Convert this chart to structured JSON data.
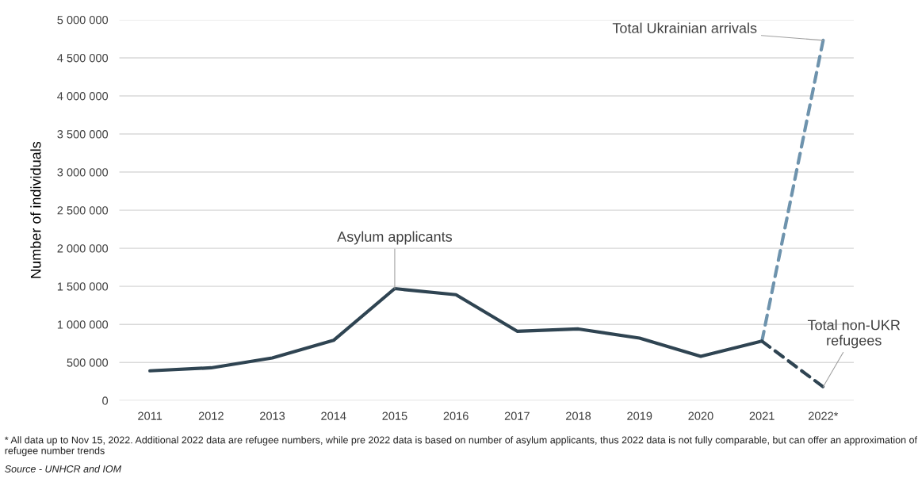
{
  "chart_data": {
    "type": "line",
    "ylabel": "Number of individuals",
    "categories": [
      "2011",
      "2012",
      "2013",
      "2014",
      "2015",
      "2016",
      "2017",
      "2018",
      "2019",
      "2020",
      "2021",
      "2022*"
    ],
    "series": [
      {
        "name": "Asylum applicants",
        "color": "#2f4452",
        "line_style": "solid",
        "values": [
          390000,
          430000,
          560000,
          790000,
          1470000,
          1390000,
          910000,
          940000,
          820000,
          580000,
          780000,
          null
        ]
      },
      {
        "name": "Total Ukrainian arrivals",
        "color": "#6e93ad",
        "line_style": "dashed",
        "values": [
          null,
          null,
          null,
          null,
          null,
          null,
          null,
          null,
          null,
          null,
          780000,
          4730000
        ]
      },
      {
        "name": "Total non-UKR refugees",
        "color": "#2f4452",
        "line_style": "dashed",
        "values": [
          null,
          null,
          null,
          null,
          null,
          null,
          null,
          null,
          null,
          null,
          780000,
          180000
        ]
      }
    ],
    "ylim": [
      0,
      5000000
    ],
    "yticks": [
      {
        "value": 0,
        "label": "0"
      },
      {
        "value": 500000,
        "label": "500 000"
      },
      {
        "value": 1000000,
        "label": "1 000 000"
      },
      {
        "value": 1500000,
        "label": "1 500 000"
      },
      {
        "value": 2000000,
        "label": "2 000 000"
      },
      {
        "value": 2500000,
        "label": "2 500 000"
      },
      {
        "value": 3000000,
        "label": "3 000 000"
      },
      {
        "value": 3500000,
        "label": "3 500 000"
      },
      {
        "value": 4000000,
        "label": "4 000 000"
      },
      {
        "value": 4500000,
        "label": "4 500 000"
      },
      {
        "value": 5000000,
        "label": "5 000 000"
      }
    ],
    "grid": "y",
    "legend": false,
    "marker": "none",
    "annotations": [
      "* All data up to Nov 15, 2022. Additional 2022 data are refugee numbers, while pre 2022 data is based on number of asylum applicants, thus 2022 data is not fully comparable, but can offer an approximation of refugee number trends",
      "Source - UNHCR and IOM"
    ]
  }
}
